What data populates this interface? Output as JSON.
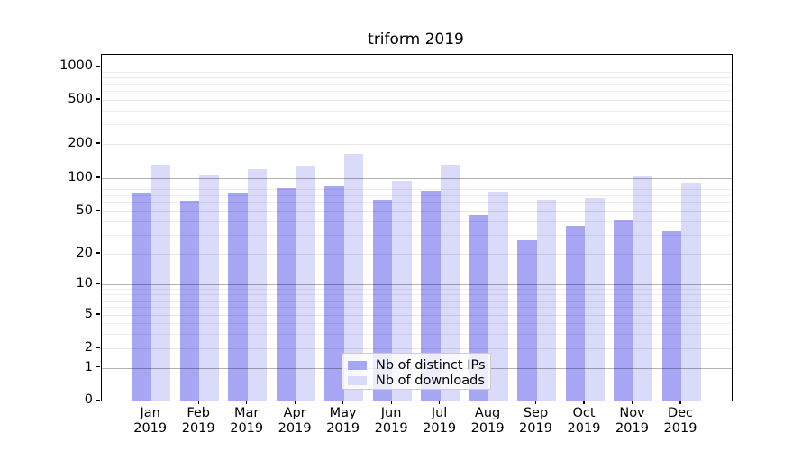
{
  "title": "triform 2019",
  "chart_data": {
    "type": "bar",
    "title": "triform 2019",
    "categories": [
      "Jan",
      "Feb",
      "Mar",
      "Apr",
      "May",
      "Jun",
      "Jul",
      "Aug",
      "Sep",
      "Oct",
      "Nov",
      "Dec"
    ],
    "category_year": "2019",
    "series": [
      {
        "name": "Nb of distinct IPs",
        "color": "#a6a6f5",
        "values": [
          75,
          63,
          73,
          82,
          85,
          64,
          78,
          47,
          27,
          37,
          42,
          33
        ]
      },
      {
        "name": "Nb of downloads",
        "color": "#dadaf9",
        "values": [
          132,
          107,
          121,
          130,
          166,
          95,
          132,
          76,
          65,
          67,
          105,
          92
        ]
      }
    ],
    "xlabel": "",
    "ylabel": "",
    "yaxis": {
      "scale": "symlog",
      "ylim": [
        0,
        1300
      ],
      "tick_labels": [
        "0",
        "1",
        "2",
        "5",
        "10",
        "20",
        "50",
        "100",
        "200",
        "500",
        "1000"
      ],
      "tick_values": [
        0,
        1,
        2,
        5,
        10,
        20,
        50,
        100,
        200,
        500,
        1000
      ],
      "emphasized_gridlines": [
        1,
        10,
        100,
        1000
      ]
    },
    "grid": true,
    "legend_position": "lower center"
  }
}
